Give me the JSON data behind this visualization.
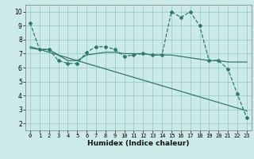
{
  "title": "",
  "xlabel": "Humidex (Indice chaleur)",
  "ylabel": "",
  "background_color": "#cceae7",
  "grid_color": "#99cccc",
  "line_color": "#2d7a6a",
  "xlim": [
    -0.5,
    23.5
  ],
  "ylim": [
    1.5,
    10.5
  ],
  "xticks": [
    0,
    1,
    2,
    3,
    4,
    5,
    6,
    7,
    8,
    9,
    10,
    11,
    12,
    13,
    14,
    15,
    16,
    17,
    18,
    19,
    20,
    21,
    22,
    23
  ],
  "yticks": [
    2,
    3,
    4,
    5,
    6,
    7,
    8,
    9,
    10
  ],
  "series1_x": [
    0,
    1,
    2,
    3,
    4,
    5,
    6,
    7,
    8,
    9,
    10,
    11,
    12,
    13,
    14,
    15,
    16,
    17,
    18,
    19,
    20,
    21,
    22,
    23
  ],
  "series1_y": [
    9.2,
    7.3,
    7.3,
    6.5,
    6.3,
    6.3,
    7.1,
    7.5,
    7.5,
    7.3,
    6.8,
    6.9,
    7.0,
    6.9,
    6.9,
    10.0,
    9.6,
    10.0,
    9.0,
    6.5,
    6.5,
    5.9,
    4.1,
    2.4
  ],
  "series2_x": [
    0,
    1,
    2,
    3,
    4,
    5,
    6,
    7,
    8,
    9,
    10,
    11,
    12,
    13,
    14,
    15,
    16,
    17,
    18,
    19,
    20,
    21,
    22,
    23
  ],
  "series2_y": [
    7.4,
    7.3,
    7.3,
    6.9,
    6.5,
    6.5,
    6.9,
    7.0,
    7.1,
    7.1,
    7.0,
    7.0,
    7.0,
    6.9,
    6.9,
    6.9,
    6.8,
    6.7,
    6.6,
    6.5,
    6.5,
    6.4,
    6.4,
    6.4
  ],
  "series3_x": [
    0,
    23
  ],
  "series3_y": [
    7.5,
    2.9
  ]
}
